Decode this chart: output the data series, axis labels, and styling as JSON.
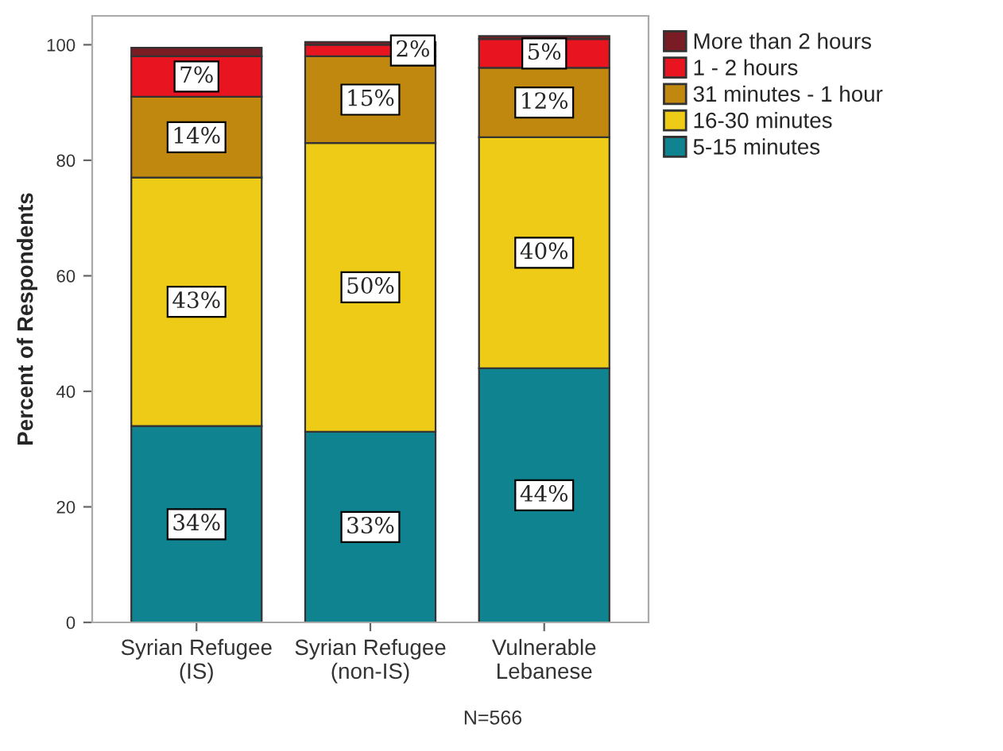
{
  "chart_data": {
    "type": "bar",
    "stacked": true,
    "categories": [
      "Syrian Refugee\n(IS)",
      "Syrian Refugee\n(non-IS)",
      "Vulnerable\nLebanese"
    ],
    "series": [
      {
        "name": "5-15 minutes",
        "color": "#0f8390",
        "values": [
          34,
          33,
          44
        ],
        "value_labels": [
          "34%",
          "33%",
          "44%"
        ]
      },
      {
        "name": "16-30 minutes",
        "color": "#eecb16",
        "values": [
          43,
          50,
          40
        ],
        "value_labels": [
          "43%",
          "50%",
          "40%"
        ]
      },
      {
        "name": "31 minutes - 1 hour",
        "color": "#c0880e",
        "values": [
          14,
          15,
          12
        ],
        "value_labels": [
          "14%",
          "15%",
          "12%"
        ]
      },
      {
        "name": "1 - 2 hours",
        "color": "#e8141f",
        "values": [
          7,
          2,
          5
        ],
        "value_labels": [
          "7%",
          "2%",
          "5%"
        ]
      },
      {
        "name": "More than 2 hours",
        "color": "#7a1c24",
        "values": [
          1.5,
          0.5,
          0.5
        ]
      }
    ],
    "ylabel": "Percent of Respondents",
    "ylim": [
      0,
      105
    ],
    "yticks": [
      0,
      20,
      40,
      60,
      80,
      100
    ],
    "grid": false,
    "legend": "top right",
    "annotations": [
      "N=566"
    ]
  }
}
